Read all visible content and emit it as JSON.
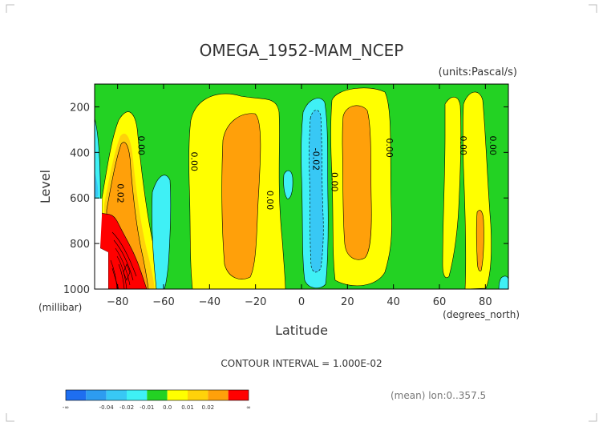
{
  "chart_data": {
    "type": "contour",
    "title": "OMEGA_1952-MAM_NCEP",
    "units_label": "(units:Pascal/s)",
    "ylabel": "Level",
    "yunits": "(millibar)",
    "xlabel": "Latitude",
    "xunits": "(degrees_north)",
    "xlim": [
      -90,
      90
    ],
    "ylim": [
      1000,
      100
    ],
    "y_inverted": true,
    "x_ticks": [
      -80,
      -60,
      -40,
      -20,
      0,
      20,
      40,
      60,
      80
    ],
    "y_ticks": [
      200,
      400,
      600,
      800,
      1000
    ],
    "contour_interval_text": "CONTOUR INTERVAL = 1.000E-02",
    "mean_text": "(mean) lon:0..357.5",
    "contour_labels": [
      {
        "text": "0.00",
        "x": -71,
        "y": 370
      },
      {
        "text": "0.02",
        "x": -80,
        "y": 580
      },
      {
        "text": "0.00",
        "x": -48,
        "y": 440
      },
      {
        "text": "0.00",
        "x": -15,
        "y": 610
      },
      {
        "text": "-0.02",
        "x": 5,
        "y": 430
      },
      {
        "text": "0.00",
        "x": 13,
        "y": 530
      },
      {
        "text": "0.00",
        "x": 37,
        "y": 380
      },
      {
        "text": "0.00",
        "x": 69,
        "y": 370
      },
      {
        "text": "0.00",
        "x": 82,
        "y": 370
      }
    ],
    "legend": {
      "colors": [
        "#1e6ef0",
        "#2d9cf0",
        "#38c8f5",
        "#3ff0f5",
        "#23d223",
        "#ffff00",
        "#ffd20a",
        "#ffa00a",
        "#ff0000"
      ],
      "labels": [
        "-∞",
        "-0.04",
        "-0.02",
        "-0.01",
        "0.0",
        "0.01",
        "0.02",
        "∞"
      ]
    }
  }
}
